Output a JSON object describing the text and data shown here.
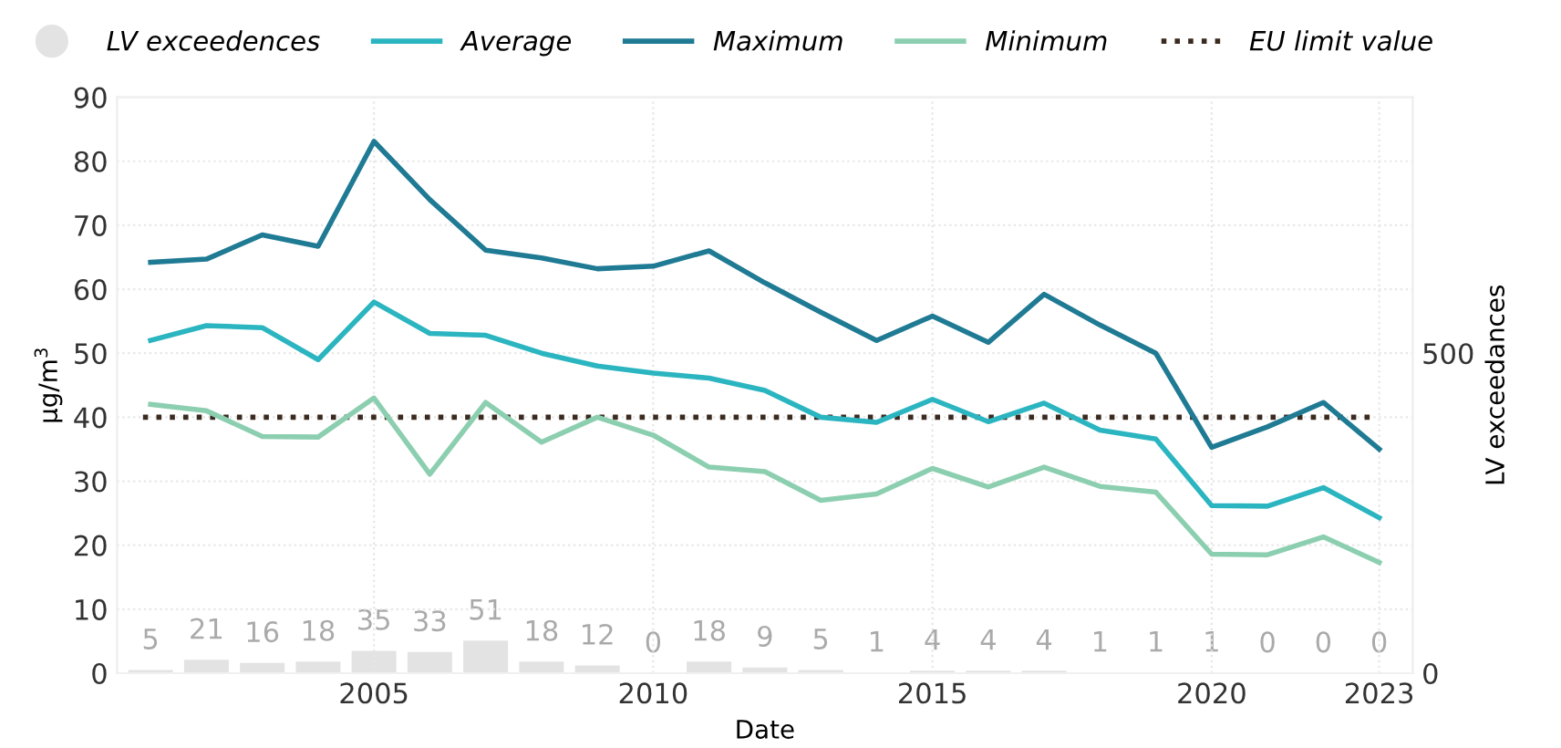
{
  "chart_data": {
    "type": "line",
    "xlabel": "Date",
    "ylabel": "µg/m$^{3}$",
    "y2label": "LV exceedances",
    "x": [
      2001,
      2002,
      2003,
      2004,
      2005,
      2006,
      2007,
      2008,
      2009,
      2010,
      2011,
      2012,
      2013,
      2014,
      2015,
      2016,
      2017,
      2018,
      2019,
      2020,
      2021,
      2022,
      2023
    ],
    "series": [
      {
        "name": "LV exceedences",
        "type": "bar",
        "axis": "y2",
        "color": "#e3e3e3",
        "values": [
          5,
          21,
          16,
          18,
          35,
          33,
          51,
          18,
          12,
          0,
          18,
          9,
          5,
          1,
          4,
          4,
          4,
          1,
          1,
          1,
          0,
          0,
          0
        ],
        "data_labels": true
      },
      {
        "name": "Average",
        "color": "#2bb5c0",
        "values": [
          52,
          54.3,
          54,
          49,
          58,
          53.1,
          52.8,
          50,
          48,
          46.9,
          46.1,
          44.2,
          40,
          39.2,
          42.8,
          39.3,
          42.2,
          38,
          36.6,
          26.2,
          26.1,
          29,
          24.3
        ]
      },
      {
        "name": "Maximum",
        "color": "#1f7a94",
        "values": [
          64.2,
          64.7,
          68.5,
          66.7,
          83.1,
          74,
          66.1,
          64.9,
          63.2,
          63.6,
          66,
          61,
          56.4,
          52,
          55.8,
          51.7,
          59.2,
          54.4,
          50,
          35.3,
          38.5,
          42.3,
          35
        ]
      },
      {
        "name": "Minimum",
        "color": "#8ccfb0",
        "values": [
          42,
          41,
          37,
          36.9,
          43,
          31.1,
          42.3,
          36.1,
          40,
          37.2,
          32.2,
          31.5,
          27,
          28,
          32,
          29.1,
          32.2,
          29.2,
          28.3,
          18.6,
          18.5,
          21.3,
          17.3
        ]
      }
    ],
    "ref_lines": [
      {
        "axis": "y",
        "value": 40,
        "label": "EU limit value",
        "color": "#3a2a20",
        "line_style": "dotted"
      }
    ],
    "xlim": [
      2000.4,
      2023.6
    ],
    "xticks": [
      2005,
      2010,
      2015,
      2020,
      2023
    ],
    "ylim": [
      0,
      90
    ],
    "yticks": [
      0,
      10,
      20,
      30,
      40,
      50,
      60,
      70,
      80,
      90
    ],
    "y2lim": [
      0,
      900
    ],
    "y2ticks": [
      0,
      500
    ],
    "grid": true,
    "legend": "top",
    "line_style": "solid"
  }
}
